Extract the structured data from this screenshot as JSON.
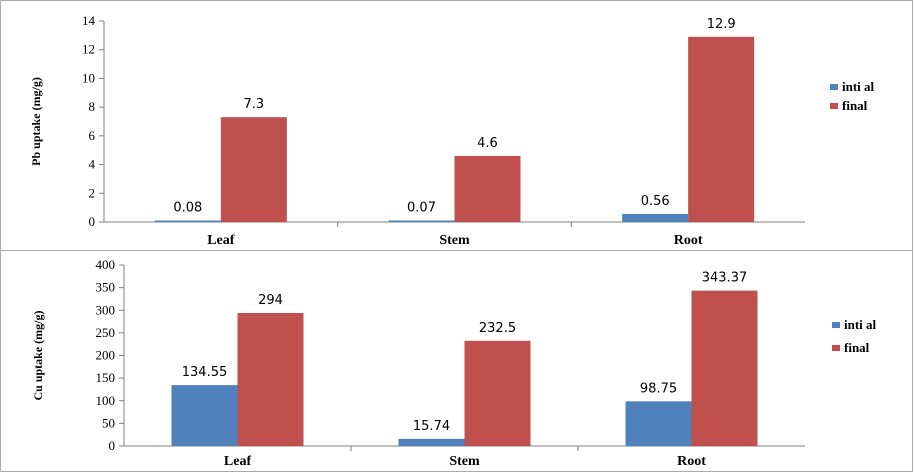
{
  "chart_data": [
    {
      "type": "bar",
      "title": "",
      "xlabel": "",
      "ylabel": "Pb uptake (mg/g)",
      "ylim": [
        0,
        14
      ],
      "yticks": [
        0,
        2,
        4,
        6,
        8,
        10,
        12,
        14
      ],
      "categories": [
        "Leaf",
        "Stem",
        "Root"
      ],
      "series": [
        {
          "name": "inti al",
          "color": "#4F81BD",
          "values": [
            0.08,
            0.07,
            0.56
          ],
          "labels": [
            "0.08",
            "0.07",
            "0.56"
          ]
        },
        {
          "name": "final",
          "color": "#C0504D",
          "values": [
            7.3,
            4.6,
            12.9
          ],
          "labels": [
            "7.3",
            "4.6",
            "12.9"
          ]
        }
      ],
      "legend": "right",
      "grid": false
    },
    {
      "type": "bar",
      "title": "",
      "xlabel": "",
      "ylabel": "Cu uptake (mg/g)",
      "ylim": [
        0,
        400
      ],
      "yticks": [
        0,
        50,
        100,
        150,
        200,
        250,
        300,
        350,
        400
      ],
      "categories": [
        "Leaf",
        "Stem",
        "Root"
      ],
      "series": [
        {
          "name": "inti al",
          "color": "#4F81BD",
          "values": [
            134.55,
            15.74,
            98.75
          ],
          "labels": [
            "134.55",
            "15.74",
            "98.75"
          ]
        },
        {
          "name": "final",
          "color": "#C0504D",
          "values": [
            294,
            232.5,
            343.37
          ],
          "labels": [
            "294",
            "232.5",
            "343.37"
          ]
        }
      ],
      "legend": "right",
      "grid": false
    }
  ]
}
